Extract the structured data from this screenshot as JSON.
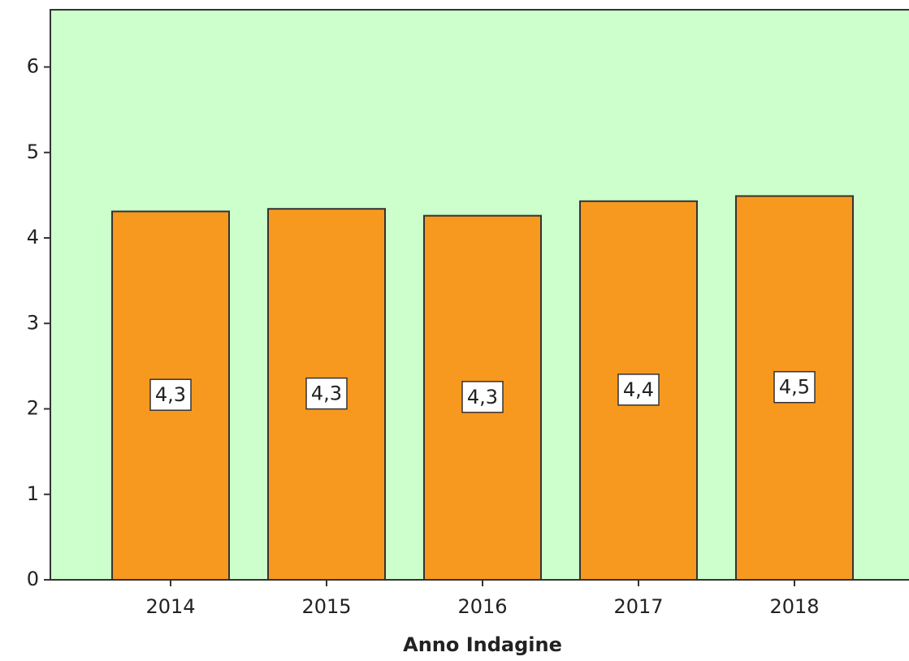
{
  "chart_data": {
    "type": "bar",
    "x_label": "Anno Indagine",
    "categories": [
      "2014",
      "2015",
      "2016",
      "2017",
      "2018"
    ],
    "values": [
      4.31,
      4.34,
      4.26,
      4.43,
      4.49
    ],
    "value_labels": [
      "4,3",
      "4,3",
      "4,3",
      "4,4",
      "4,5"
    ],
    "color": "#f7991f",
    "background": "#ccffcc",
    "ylim": [
      0,
      6.67
    ],
    "yticks": [
      0,
      1,
      2,
      3,
      4,
      5,
      6
    ]
  }
}
